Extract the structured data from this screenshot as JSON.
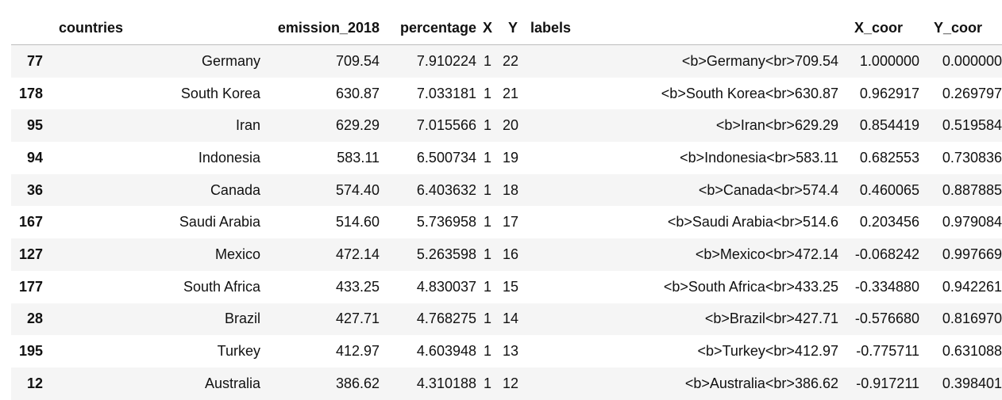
{
  "table": {
    "index_header": "",
    "columns": [
      "countries",
      "emission_2018",
      "percentage",
      "X",
      "Y",
      "labels",
      "X_coor",
      "Y_coor"
    ],
    "rows": [
      {
        "index": "77",
        "countries": "Germany",
        "emission_2018": "709.54",
        "percentage": "7.910224",
        "X": "1",
        "Y": "22",
        "labels": "<b>Germany<br>709.54",
        "X_coor": "1.000000",
        "Y_coor": "0.000000"
      },
      {
        "index": "178",
        "countries": "South Korea",
        "emission_2018": "630.87",
        "percentage": "7.033181",
        "X": "1",
        "Y": "21",
        "labels": "<b>South Korea<br>630.87",
        "X_coor": "0.962917",
        "Y_coor": "0.269797"
      },
      {
        "index": "95",
        "countries": "Iran",
        "emission_2018": "629.29",
        "percentage": "7.015566",
        "X": "1",
        "Y": "20",
        "labels": "<b>Iran<br>629.29",
        "X_coor": "0.854419",
        "Y_coor": "0.519584"
      },
      {
        "index": "94",
        "countries": "Indonesia",
        "emission_2018": "583.11",
        "percentage": "6.500734",
        "X": "1",
        "Y": "19",
        "labels": "<b>Indonesia<br>583.11",
        "X_coor": "0.682553",
        "Y_coor": "0.730836"
      },
      {
        "index": "36",
        "countries": "Canada",
        "emission_2018": "574.40",
        "percentage": "6.403632",
        "X": "1",
        "Y": "18",
        "labels": "<b>Canada<br>574.4",
        "X_coor": "0.460065",
        "Y_coor": "0.887885"
      },
      {
        "index": "167",
        "countries": "Saudi Arabia",
        "emission_2018": "514.60",
        "percentage": "5.736958",
        "X": "1",
        "Y": "17",
        "labels": "<b>Saudi Arabia<br>514.6",
        "X_coor": "0.203456",
        "Y_coor": "0.979084"
      },
      {
        "index": "127",
        "countries": "Mexico",
        "emission_2018": "472.14",
        "percentage": "5.263598",
        "X": "1",
        "Y": "16",
        "labels": "<b>Mexico<br>472.14",
        "X_coor": "-0.068242",
        "Y_coor": "0.997669"
      },
      {
        "index": "177",
        "countries": "South Africa",
        "emission_2018": "433.25",
        "percentage": "4.830037",
        "X": "1",
        "Y": "15",
        "labels": "<b>South Africa<br>433.25",
        "X_coor": "-0.334880",
        "Y_coor": "0.942261"
      },
      {
        "index": "28",
        "countries": "Brazil",
        "emission_2018": "427.71",
        "percentage": "4.768275",
        "X": "1",
        "Y": "14",
        "labels": "<b>Brazil<br>427.71",
        "X_coor": "-0.576680",
        "Y_coor": "0.816970"
      },
      {
        "index": "195",
        "countries": "Turkey",
        "emission_2018": "412.97",
        "percentage": "4.603948",
        "X": "1",
        "Y": "13",
        "labels": "<b>Turkey<br>412.97",
        "X_coor": "-0.775711",
        "Y_coor": "0.631088"
      },
      {
        "index": "12",
        "countries": "Australia",
        "emission_2018": "386.62",
        "percentage": "4.310188",
        "X": "1",
        "Y": "12",
        "labels": "<b>Australia<br>386.62",
        "X_coor": "-0.917211",
        "Y_coor": "0.398401"
      }
    ]
  }
}
